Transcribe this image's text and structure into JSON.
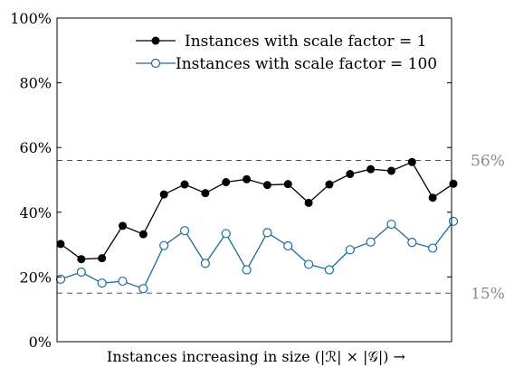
{
  "chart_data": {
    "type": "line",
    "title": "",
    "xlabel": "Instances increasing in size (|ℛ| × |𝒢|) →",
    "ylabel": "",
    "ylim": [
      0,
      100
    ],
    "yticks": [
      "0%",
      "20%",
      "40%",
      "60%",
      "80%",
      "100%"
    ],
    "grid": false,
    "legend_position": "top-right",
    "reference_lines": [
      {
        "value": 56,
        "label": "56%",
        "style": "dashed",
        "color": "#555555"
      },
      {
        "value": 15,
        "label": "15%",
        "style": "dashed",
        "color": "#555555"
      }
    ],
    "x": [
      1,
      2,
      3,
      4,
      5,
      6,
      7,
      8,
      9,
      10,
      11,
      12,
      13,
      14,
      15,
      16,
      17,
      18,
      19,
      20
    ],
    "series": [
      {
        "name": "Instances with scale factor = 1",
        "color": "#000000",
        "marker": "filled-circle",
        "values": [
          30.2,
          25.5,
          25.8,
          35.8,
          33.2,
          45.5,
          48.6,
          45.9,
          49.3,
          50.2,
          48.4,
          48.7,
          42.9,
          48.6,
          51.8,
          53.3,
          52.8,
          55.5,
          44.5,
          48.8
        ]
      },
      {
        "name": "Instances with scale factor = 100",
        "color": "#1b6e9a",
        "marker": "open-circle",
        "values": [
          19.3,
          21.5,
          18.1,
          18.7,
          16.4,
          29.7,
          34.3,
          24.2,
          33.4,
          22.2,
          33.7,
          29.6,
          23.9,
          22.2,
          28.4,
          30.8,
          36.3,
          30.7,
          28.9,
          37.2
        ]
      }
    ]
  }
}
